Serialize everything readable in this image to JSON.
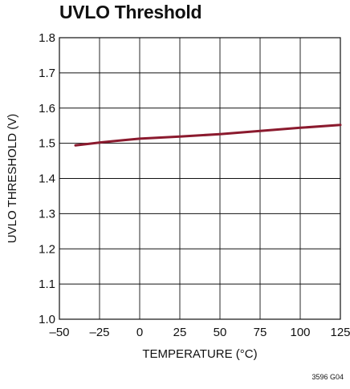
{
  "chart_data": {
    "type": "line",
    "title": "UVLO Threshold",
    "xlabel": "TEMPERATURE (°C)",
    "ylabel": "UVLO THRESHOLD (V)",
    "xlim": [
      -50,
      125
    ],
    "ylim": [
      1.0,
      1.8
    ],
    "x_ticks": [
      -50,
      -25,
      0,
      25,
      50,
      75,
      100,
      125
    ],
    "x_tick_labels": [
      "–50",
      "–25",
      "0",
      "25",
      "50",
      "75",
      "100",
      "125"
    ],
    "y_ticks": [
      1.0,
      1.1,
      1.2,
      1.3,
      1.4,
      1.5,
      1.6,
      1.7,
      1.8
    ],
    "y_tick_labels": [
      "1.0",
      "1.1",
      "1.2",
      "1.3",
      "1.4",
      "1.5",
      "1.6",
      "1.7",
      "1.8"
    ],
    "grid": true,
    "series": [
      {
        "color": "#8b1a2e",
        "x": [
          -40,
          -25,
          -10,
          0,
          25,
          50,
          75,
          100,
          125
        ],
        "y": [
          1.494,
          1.502,
          1.509,
          1.513,
          1.519,
          1.526,
          1.535,
          1.544,
          1.552
        ]
      }
    ]
  },
  "figure_id": "3596 G04"
}
